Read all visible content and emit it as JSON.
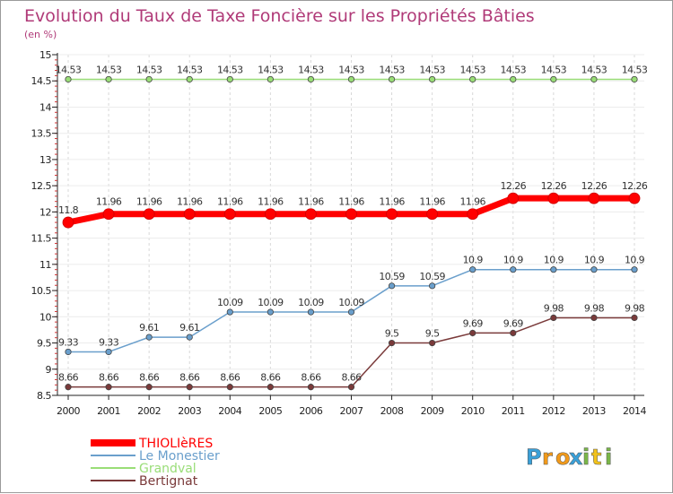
{
  "chart_data": {
    "type": "line",
    "title": "Evolution du Taux de Taxe Foncière sur les Propriétés Bâties",
    "subtitle": "(en %)",
    "xlabel": "",
    "ylabel": "",
    "x": [
      "2000",
      "2001",
      "2002",
      "2003",
      "2004",
      "2005",
      "2006",
      "2007",
      "2008",
      "2009",
      "2010",
      "2011",
      "2012",
      "2013",
      "2014"
    ],
    "ylim": [
      8.5,
      15
    ],
    "yticks": [
      "8.5",
      "9",
      "9.5",
      "10",
      "10.5",
      "11",
      "11.5",
      "12",
      "12.5",
      "13",
      "13.5",
      "14",
      "14.5",
      "15"
    ],
    "series": [
      {
        "name": "THIOLIèRES",
        "color": "#ff0000",
        "values": [
          11.8,
          11.96,
          11.96,
          11.96,
          11.96,
          11.96,
          11.96,
          11.96,
          11.96,
          11.96,
          11.96,
          12.26,
          12.26,
          12.26,
          12.26
        ],
        "labels": [
          "11.8",
          "11.96",
          "11.96",
          "11.96",
          "11.96",
          "11.96",
          "11.96",
          "11.96",
          "11.96",
          "11.96",
          "11.96",
          "12.26",
          "12.26",
          "12.26",
          "12.26"
        ]
      },
      {
        "name": "Le Monestier",
        "color": "#6a9fcc",
        "values": [
          9.33,
          9.33,
          9.61,
          9.61,
          10.09,
          10.09,
          10.09,
          10.09,
          10.59,
          10.59,
          10.9,
          10.9,
          10.9,
          10.9,
          10.9
        ],
        "labels": [
          "9.33",
          "9.33",
          "9.61",
          "9.61",
          "10.09",
          "10.09",
          "10.09",
          "10.09",
          "10.59",
          "10.59",
          "10.9",
          "10.9",
          "10.9",
          "10.9",
          "10.9"
        ]
      },
      {
        "name": "Grandval",
        "color": "#99dd77",
        "values": [
          14.53,
          14.53,
          14.53,
          14.53,
          14.53,
          14.53,
          14.53,
          14.53,
          14.53,
          14.53,
          14.53,
          14.53,
          14.53,
          14.53,
          14.53
        ],
        "labels": [
          "14.53",
          "14.53",
          "14.53",
          "14.53",
          "14.53",
          "14.53",
          "14.53",
          "14.53",
          "14.53",
          "14.53",
          "14.53",
          "14.53",
          "14.53",
          "14.53",
          "14.53"
        ]
      },
      {
        "name": "Bertignat",
        "color": "#7a3a3a",
        "values": [
          8.66,
          8.66,
          8.66,
          8.66,
          8.66,
          8.66,
          8.66,
          8.66,
          9.5,
          9.5,
          9.69,
          9.69,
          9.98,
          9.98,
          9.98
        ],
        "labels": [
          "8.66",
          "8.66",
          "8.66",
          "8.66",
          "8.66",
          "8.66",
          "8.66",
          "8.66",
          "9.5",
          "9.5",
          "9.69",
          "9.69",
          "9.98",
          "9.98",
          "9.98"
        ]
      }
    ],
    "legend": [
      "THIOLIèRES",
      "Le Monestier",
      "Grandval",
      "Bertignat"
    ],
    "legend_position": "bottom-left"
  },
  "branding": {
    "logo_letters": [
      "P",
      "r",
      "o",
      "x",
      "i",
      "t",
      "i"
    ],
    "logo_colors": [
      "#3aa0d8",
      "#f29a1a",
      "#f29a1a",
      "#3aa0d8",
      "#7ab648",
      "#f2c21a",
      "#7ab648"
    ]
  }
}
